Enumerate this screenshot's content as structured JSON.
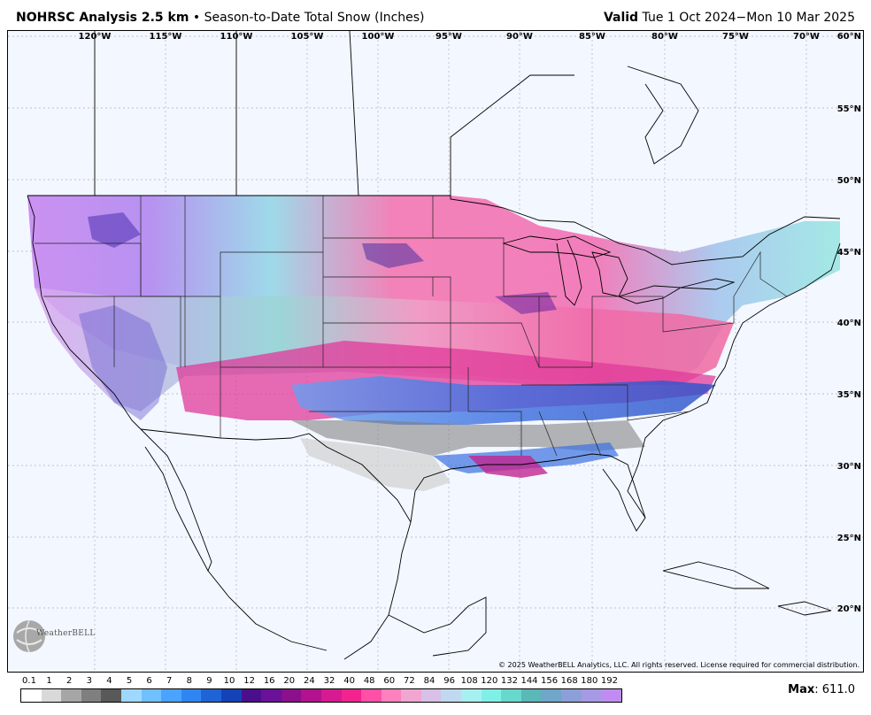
{
  "header": {
    "title_bold": "NOHRSC Analysis 2.5 km",
    "title_rest": " • Season-to-Date Total Snow (Inches)",
    "valid_label": "Valid",
    "valid_range": " Tue 1 Oct 2024−Mon 10 Mar 2025"
  },
  "map": {
    "longitude_labels": [
      "120°W",
      "115°W",
      "110°W",
      "105°W",
      "100°W",
      "95°W",
      "90°W",
      "85°W",
      "80°W",
      "75°W",
      "70°W"
    ],
    "latitude_labels": [
      "60°N",
      "55°N",
      "50°N",
      "45°N",
      "40°N",
      "35°N",
      "30°N",
      "25°N",
      "20°N"
    ],
    "copyright": "© 2025 WeatherBELL Analytics, LLC. All rights reserved. License required for commercial distribution.",
    "logo_text": "WeatherBELL",
    "logo_subtext": "Analytics LLC"
  },
  "legend": {
    "ticks": [
      "0.1",
      "1",
      "2",
      "3",
      "4",
      "5",
      "6",
      "7",
      "8",
      "9",
      "10",
      "12",
      "16",
      "20",
      "24",
      "32",
      "40",
      "48",
      "60",
      "72",
      "84",
      "96",
      "108",
      "120",
      "132",
      "144",
      "156",
      "168",
      "180",
      "192"
    ],
    "colors": [
      "#ffffff",
      "#d9d9d9",
      "#a6a6a6",
      "#7f7f7f",
      "#595959",
      "#9fd8ff",
      "#70c0ff",
      "#4aa3ff",
      "#2f86f2",
      "#1f63d6",
      "#1542b8",
      "#4b0f8c",
      "#6a1099",
      "#8c0f8c",
      "#b3128f",
      "#d61a8f",
      "#f2228f",
      "#ff4fa6",
      "#ff80bf",
      "#f0a6d0",
      "#d9c0e6",
      "#c0d9f0",
      "#a6f0f0",
      "#80f0e6",
      "#66d9cc",
      "#5ab8b8",
      "#70a6c9",
      "#8c9fd9",
      "#a699e6",
      "#c08cf2"
    ]
  },
  "max": {
    "label": "Max",
    "value": ": 611.0"
  }
}
